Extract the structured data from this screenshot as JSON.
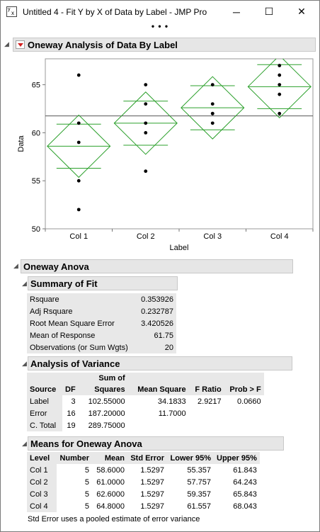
{
  "window": {
    "icon_label": "y x",
    "title": "Untitled 4 - Fit Y by X of Data by Label - JMP Pro",
    "min_glyph": "─",
    "max_glyph": "☐",
    "close_glyph": "✕",
    "grip": "• • •"
  },
  "report": {
    "title": "Oneway Analysis of Data By Label"
  },
  "chart_data": {
    "type": "scatter",
    "xlabel": "Label",
    "ylabel": "Data",
    "categories": [
      "Col 1",
      "Col 2",
      "Col 3",
      "Col 4"
    ],
    "ylim": [
      50,
      67.7
    ],
    "yticks": [
      50,
      55,
      60,
      65
    ],
    "grand_mean": 61.75,
    "points": [
      [
        66,
        61,
        59,
        55,
        52
      ],
      [
        65,
        63,
        61,
        60,
        56
      ],
      [
        65,
        63,
        62,
        61,
        62
      ],
      [
        67,
        66,
        65,
        64,
        62
      ]
    ],
    "means": [
      58.6,
      61.0,
      62.6,
      64.8
    ],
    "ci_lower": [
      55.357,
      57.757,
      59.357,
      61.557
    ],
    "ci_upper": [
      61.843,
      64.243,
      65.843,
      68.043
    ],
    "overlap_marks_offset": 2.293,
    "diamond_color": "#2ca02c",
    "point_color": "#000000",
    "grid": false
  },
  "anova": {
    "title": "Oneway Anova",
    "fit": {
      "title": "Summary of Fit",
      "rows": [
        {
          "label": "Rsquare",
          "value": "0.353926"
        },
        {
          "label": "Adj Rsquare",
          "value": "0.232787"
        },
        {
          "label": "Root Mean Square Error",
          "value": "3.420526"
        },
        {
          "label": "Mean of Response",
          "value": "61.75"
        },
        {
          "label": "Observations (or Sum Wgts)",
          "value": "20"
        }
      ]
    },
    "aov": {
      "title": "Analysis of Variance",
      "head_top": [
        "",
        "",
        "Sum of",
        "",
        "",
        ""
      ],
      "headers": [
        "Source",
        "DF",
        "Squares",
        "Mean Square",
        "F Ratio",
        "Prob > F"
      ],
      "rows": [
        [
          "Label",
          "3",
          "102.55000",
          "34.1833",
          "2.9217",
          "0.0660"
        ],
        [
          "Error",
          "16",
          "187.20000",
          "11.7000",
          "",
          ""
        ],
        [
          "C. Total",
          "19",
          "289.75000",
          "",
          "",
          ""
        ]
      ]
    },
    "means": {
      "title": "Means for Oneway Anova",
      "headers": [
        "Level",
        "Number",
        "Mean",
        "Std Error",
        "Lower 95%",
        "Upper 95%"
      ],
      "rows": [
        [
          "Col 1",
          "5",
          "58.6000",
          "1.5297",
          "55.357",
          "61.843"
        ],
        [
          "Col 2",
          "5",
          "61.0000",
          "1.5297",
          "57.757",
          "64.243"
        ],
        [
          "Col 3",
          "5",
          "62.6000",
          "1.5297",
          "59.357",
          "65.843"
        ],
        [
          "Col 4",
          "5",
          "64.8000",
          "1.5297",
          "61.557",
          "68.043"
        ]
      ],
      "note": "Std Error uses a pooled estimate of error variance"
    }
  }
}
